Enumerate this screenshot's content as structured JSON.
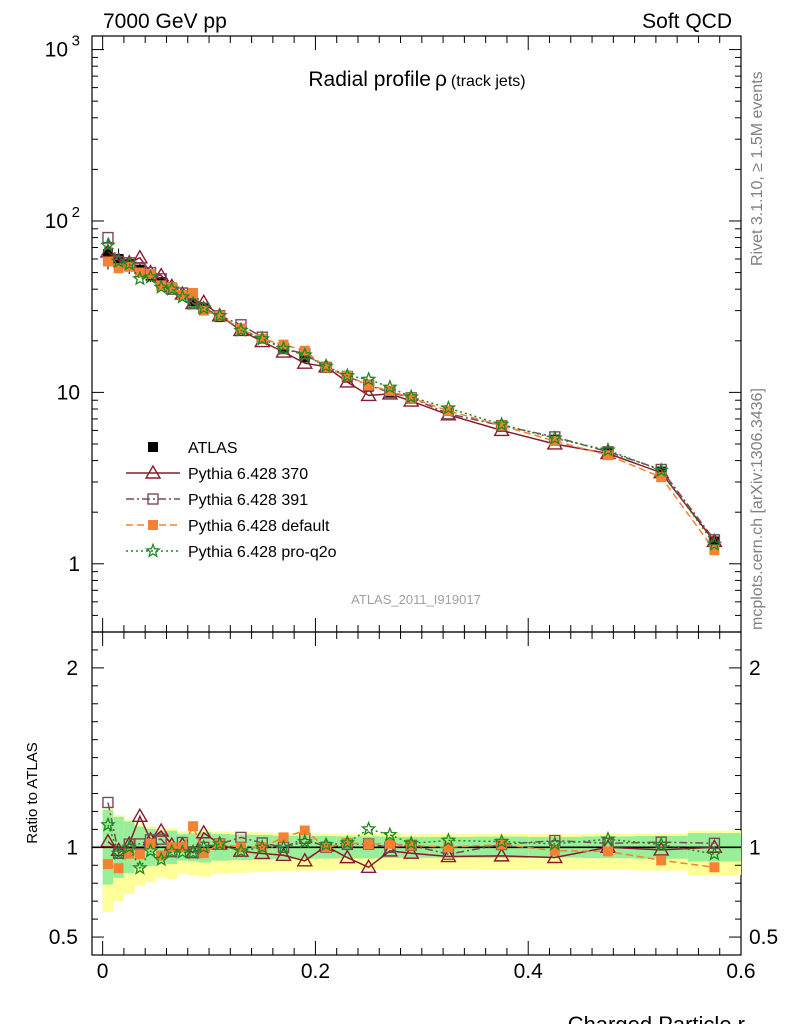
{
  "header": {
    "left": "7000 GeV pp",
    "right": "Soft QCD"
  },
  "side": {
    "top": "Rivet 3.1.10, ≥ 1.5M events",
    "bottom": "mcplots.cern.ch [arXiv:1306.3436]"
  },
  "chart_data": {
    "type": "line",
    "title": "Radial profile",
    "title_symbol": "ρ",
    "title_suffix": "(track jets)",
    "watermark": "ATLAS_2011_I919017",
    "xlabel": "Charged Particle r",
    "ratio_ylabel": "Ratio to ATLAS",
    "xlim": [
      -0.01,
      0.6
    ],
    "ylim": [
      0.4,
      1200
    ],
    "yscale": "log",
    "ratio_ylim": [
      0.4,
      2.2
    ],
    "x_ticks": [
      {
        "v": 0,
        "label": "0"
      },
      {
        "v": 0.2,
        "label": "0.2"
      },
      {
        "v": 0.4,
        "label": "0.4"
      },
      {
        "v": 0.6,
        "label": "0.6"
      }
    ],
    "y_ticks": [
      {
        "v": 1,
        "label": "1"
      },
      {
        "v": 10,
        "label": "10"
      }
    ],
    "y_power_ticks": [
      {
        "v": 100,
        "base": "10",
        "exp": "2"
      },
      {
        "v": 1000,
        "base": "10",
        "exp": "3"
      }
    ],
    "ratio_ticks": [
      {
        "v": 0.5,
        "label": "0.5"
      },
      {
        "v": 1,
        "label": "1"
      },
      {
        "v": 2,
        "label": "2"
      }
    ],
    "x": [
      0.005,
      0.015,
      0.025,
      0.035,
      0.045,
      0.055,
      0.065,
      0.075,
      0.085,
      0.095,
      0.11,
      0.13,
      0.15,
      0.17,
      0.19,
      0.21,
      0.23,
      0.25,
      0.27,
      0.29,
      0.325,
      0.375,
      0.425,
      0.475,
      0.525,
      0.575
    ],
    "legend": {
      "position": "center-left"
    },
    "series": [
      {
        "name": "ATLAS",
        "color": "#000000",
        "marker": "filled-square",
        "line": "none",
        "values": [
          64,
          60,
          56,
          52,
          48,
          44,
          41,
          37,
          34,
          31,
          27.5,
          23.5,
          20.5,
          18,
          16,
          14,
          12.2,
          10.8,
          10,
          9.2,
          7.8,
          6.3,
          5.3,
          4.4,
          3.45,
          1.35
        ],
        "errors": [
          12,
          9,
          7,
          5,
          4,
          3,
          3,
          2,
          2,
          2,
          1.5,
          1.2,
          1,
          0.8,
          0.7,
          0.6,
          0.5,
          0.45,
          0.4,
          0.35,
          0.3,
          0.25,
          0.2,
          0.18,
          0.15,
          0.08
        ]
      },
      {
        "name": "Pythia 6.428 370",
        "color": "#8b1a2b",
        "marker": "open-triangle",
        "line": "solid",
        "values": [
          66,
          59,
          57,
          61,
          50,
          48,
          41.5,
          37.5,
          33,
          33.5,
          28,
          23,
          19.8,
          17.2,
          14.8,
          14.1,
          11.5,
          9.6,
          9.8,
          8.9,
          7.4,
          6.0,
          5.0,
          4.4,
          3.4,
          1.35
        ]
      },
      {
        "name": "Pythia 6.428 391",
        "color": "#7a4a5c",
        "marker": "open-square",
        "line": "dashdot",
        "values": [
          80,
          58,
          57,
          53,
          50,
          46,
          40,
          38,
          33,
          31,
          28,
          24.8,
          21,
          18,
          16.8,
          14,
          12.4,
          11,
          10,
          9.3,
          7.5,
          6.4,
          5.5,
          4.5,
          3.55,
          1.38
        ]
      },
      {
        "name": "Pythia 6.428 default",
        "color": "#f58231",
        "marker": "filled-square",
        "line": "dashed",
        "values": [
          58,
          53,
          54,
          50,
          49,
          42,
          41,
          37,
          38,
          30,
          28,
          23.5,
          20.5,
          19,
          17.5,
          14,
          12.5,
          11,
          10.2,
          9.3,
          7.8,
          6.4,
          5.2,
          4.3,
          3.2,
          1.2
        ]
      },
      {
        "name": "Pythia 6.428 pro-q2o",
        "color": "#1e8a1e",
        "marker": "open-star",
        "line": "dotted",
        "values": [
          72,
          58,
          56,
          46,
          47,
          41,
          40,
          36,
          33,
          31,
          28,
          23,
          20.5,
          18,
          16.5,
          14.2,
          12.5,
          11.9,
          10.7,
          9.4,
          8.1,
          6.5,
          5.4,
          4.6,
          3.5,
          1.3
        ]
      }
    ]
  }
}
